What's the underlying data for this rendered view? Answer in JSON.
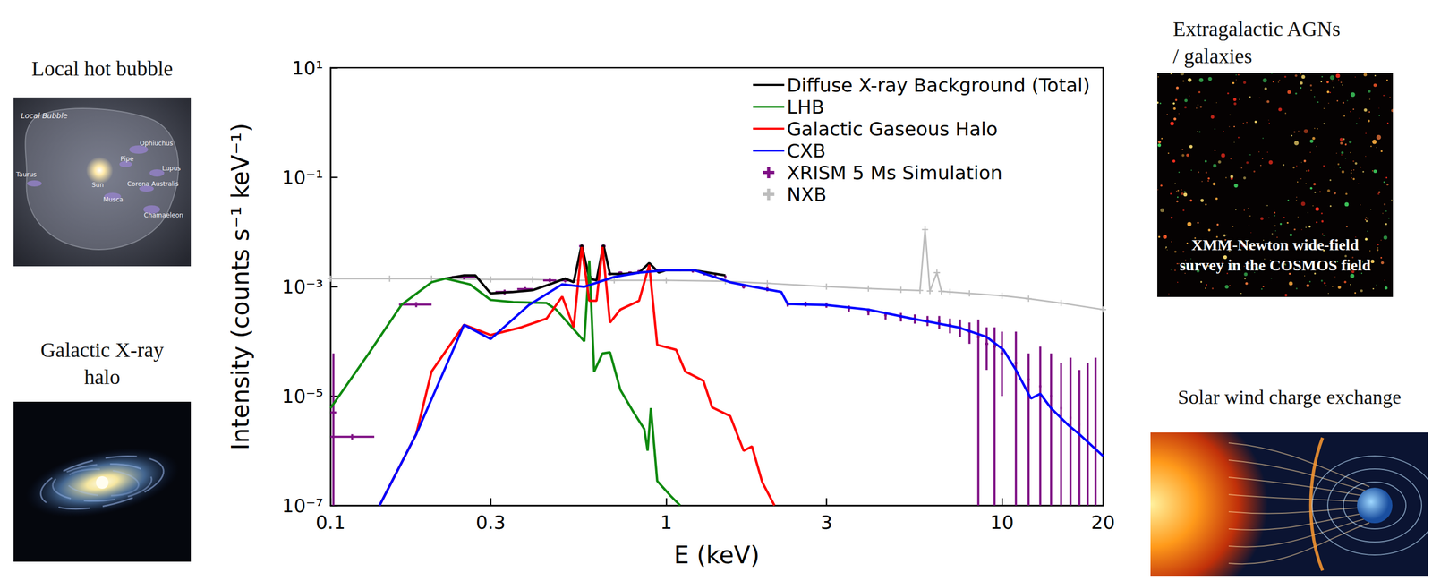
{
  "chart_data": {
    "type": "line",
    "x_label": "E (keV)",
    "y_label": "Intensity (counts s⁻¹ keV⁻¹)",
    "log": true,
    "grid": false,
    "legend": "upper right",
    "xlim": [
      0.1,
      20
    ],
    "xticks": [
      0.1,
      0.3,
      1,
      3,
      10,
      20
    ],
    "ylim": [
      1e-07,
      10
    ],
    "yticks": [
      {
        "value": 1e-07,
        "label": "10⁻⁷"
      },
      {
        "value": 1e-05,
        "label": "10⁻⁵"
      },
      {
        "value": 0.001,
        "label": "10⁻³"
      },
      {
        "value": 0.1,
        "label": "10⁻¹"
      },
      {
        "value": 10,
        "label": "10¹"
      }
    ],
    "series": [
      {
        "name": "Diffuse X-ray Background (Total)",
        "color": "#000000",
        "type": "line",
        "line_style": "solid",
        "x": [
          0.22,
          0.25,
          0.27,
          0.3,
          0.35,
          0.4,
          0.45,
          0.5,
          0.53,
          0.56,
          0.59,
          0.62,
          0.65,
          0.68,
          0.75,
          0.83,
          0.89,
          0.95,
          1.0,
          1.2,
          1.5
        ],
        "values": [
          0.0014,
          0.0016,
          0.0016,
          0.00075,
          0.0008,
          0.00086,
          0.0011,
          0.0014,
          0.0012,
          0.0058,
          0.0014,
          0.0013,
          0.0058,
          0.0017,
          0.0017,
          0.0018,
          0.0027,
          0.0018,
          0.002,
          0.002,
          0.0016
        ]
      },
      {
        "name": "LHB",
        "color": "#108a10",
        "type": "line",
        "line_style": "solid",
        "x": [
          0.1,
          0.13,
          0.163,
          0.2,
          0.22,
          0.26,
          0.3,
          0.35,
          0.44,
          0.47,
          0.57,
          0.59,
          0.61,
          0.646,
          0.68,
          0.73,
          0.8,
          0.86,
          0.88,
          0.9,
          0.94,
          1.03,
          1.1
        ],
        "values": [
          6e-06,
          6e-05,
          0.00047,
          0.0012,
          0.0014,
          0.0011,
          0.00057,
          0.00052,
          0.0005,
          0.00038,
          0.0001,
          0.003,
          2.8e-05,
          6e-05,
          6.3e-05,
          1.3e-05,
          5e-06,
          2.5e-06,
          1e-06,
          6e-06,
          2.8e-07,
          1.5e-07,
          1e-07
        ]
      },
      {
        "name": "Galactic Gaseous Halo",
        "color": "#ff0000",
        "type": "line",
        "line_style": "solid",
        "x": [
          0.14,
          0.18,
          0.2,
          0.25,
          0.3,
          0.37,
          0.44,
          0.49,
          0.53,
          0.56,
          0.59,
          0.62,
          0.646,
          0.68,
          0.73,
          0.83,
          0.89,
          0.94,
          1.07,
          1.14,
          1.29,
          1.37,
          1.55,
          1.7,
          1.8,
          1.93,
          2.1
        ],
        "values": [
          1e-07,
          2e-06,
          2.8e-05,
          0.0002,
          0.00013,
          0.00018,
          0.00026,
          0.00066,
          0.00018,
          0.0053,
          0.00055,
          0.00055,
          0.0053,
          0.00022,
          0.00038,
          0.00055,
          0.0025,
          8.6e-05,
          7e-05,
          2.8e-05,
          1.9e-05,
          6.2e-06,
          4.3e-06,
          1e-06,
          1.2e-06,
          2.7e-07,
          1e-07
        ]
      },
      {
        "name": "CXB",
        "color": "#0000ff",
        "type": "line",
        "line_style": "solid",
        "x": [
          0.14,
          0.18,
          0.25,
          0.3,
          0.39,
          0.49,
          0.57,
          0.7,
          0.83,
          1.0,
          1.21,
          1.55,
          1.8,
          2.2,
          2.3,
          3.0,
          4,
          5.4,
          7.4,
          9,
          10.1,
          11,
          12.2,
          13,
          14,
          15.7,
          17,
          20
        ],
        "values": [
          1e-07,
          2e-06,
          0.0002,
          0.00011,
          0.00046,
          0.0011,
          0.00099,
          0.0015,
          0.0018,
          0.002,
          0.002,
          0.0012,
          0.001,
          0.0008,
          0.00048,
          0.00046,
          0.00038,
          0.00026,
          0.00018,
          0.00012,
          7e-05,
          3e-05,
          9e-06,
          1.1e-05,
          6e-06,
          3e-06,
          2e-06,
          8e-07
        ]
      },
      {
        "name": "XRISM 5 Ms Simulation",
        "color": "#7f1085",
        "type": "scatter",
        "marker": "plus",
        "x": [
          0.102,
          0.116,
          0.18,
          0.25,
          0.33,
          0.38,
          0.45,
          0.5,
          0.56,
          0.59,
          0.65,
          0.68,
          0.73,
          0.78,
          0.83,
          0.89,
          0.95,
          1.0,
          1.1,
          1.2,
          1.3,
          1.4,
          1.5,
          1.7,
          2.0,
          2.3,
          2.6,
          3.0,
          3.5,
          4.0,
          4.5,
          5.0,
          5.5,
          6.0,
          6.5,
          7.0,
          7.5,
          8.0,
          8.5,
          9.0,
          9.5,
          10,
          11,
          12,
          13,
          14,
          15,
          16,
          17,
          18,
          19
        ],
        "values": [
          5e-06,
          1.8e-06,
          0.00047,
          0.0015,
          0.0008,
          0.0009,
          0.0013,
          0.0013,
          0.0055,
          0.0015,
          0.0055,
          0.0017,
          0.0018,
          0.0018,
          0.0019,
          0.0026,
          0.002,
          0.002,
          0.002,
          0.0019,
          0.0017,
          0.0016,
          0.0015,
          0.001,
          0.0009,
          0.00048,
          0.00048,
          0.00046,
          0.0004,
          0.00035,
          0.0003,
          0.00028,
          0.00026,
          0.00024,
          0.00023,
          0.0002,
          0.00018,
          0.00015,
          0.00012,
          9e-05,
          8e-05,
          6e-05,
          4e-05,
          2e-05,
          1.5e-05,
          1e-05,
          6e-06,
          4e-06,
          3e-06,
          2e-06,
          1.5e-06
        ],
        "y_low": [
          1e-07,
          1.6e-06,
          0.00042,
          0.00135,
          0.00072,
          0.00082,
          0.0012,
          0.0012,
          0.0052,
          0.0014,
          0.0052,
          0.0016,
          0.0017,
          0.0017,
          0.0018,
          0.00245,
          0.0019,
          0.0019,
          0.0019,
          0.0018,
          0.0016,
          0.0015,
          0.0014,
          0.00092,
          0.00082,
          0.00043,
          0.00043,
          0.00041,
          0.00035,
          0.0003,
          0.00025,
          0.00023,
          0.00021,
          0.00019,
          0.00017,
          0.00014,
          0.00012,
          9e-05,
          1e-07,
          3e-05,
          1e-07,
          1e-05,
          1e-07,
          1e-07,
          1e-07,
          1e-07,
          1e-07,
          1e-07,
          1e-07,
          1e-07,
          1e-07
        ],
        "y_high": [
          6e-05,
          2e-06,
          0.00052,
          0.00165,
          0.00088,
          0.00098,
          0.0014,
          0.0014,
          0.0058,
          0.0016,
          0.0058,
          0.0018,
          0.0019,
          0.0019,
          0.002,
          0.00275,
          0.0021,
          0.0021,
          0.0021,
          0.002,
          0.0018,
          0.0017,
          0.0016,
          0.00108,
          0.00098,
          0.00053,
          0.00053,
          0.00051,
          0.00045,
          0.0004,
          0.00035,
          0.00033,
          0.00031,
          0.00029,
          0.00029,
          0.00026,
          0.00025,
          0.00022,
          0.00025,
          0.00018,
          0.00018,
          0.00015,
          0.00015,
          6e-05,
          8e-05,
          6e-05,
          4e-05,
          5e-05,
          3e-05,
          4e-05,
          5e-05
        ],
        "x_low": [
          0.1,
          0.1,
          0.16,
          0.23,
          0.31,
          0.36,
          0.43,
          0.48,
          0.55,
          0.58,
          0.64,
          0.67,
          0.72,
          0.77,
          0.82,
          0.88,
          0.94,
          0.99,
          1.09,
          1.19,
          1.29,
          1.39,
          1.49,
          1.68,
          1.98,
          2.28,
          2.58,
          2.97,
          3.47,
          3.96,
          4.46,
          4.95,
          5.45,
          5.94,
          6.44,
          6.93,
          7.43,
          7.92,
          8.42,
          8.9,
          9.4,
          9.9,
          10.9,
          11.9,
          12.9,
          13.9,
          14.9,
          15.9,
          16.9,
          17.9,
          18.9
        ],
        "x_high": [
          0.104,
          0.135,
          0.2,
          0.27,
          0.35,
          0.4,
          0.47,
          0.52,
          0.57,
          0.6,
          0.66,
          0.69,
          0.74,
          0.79,
          0.84,
          0.9,
          0.96,
          1.01,
          1.11,
          1.21,
          1.31,
          1.41,
          1.51,
          1.72,
          2.02,
          2.32,
          2.62,
          3.03,
          3.53,
          4.04,
          4.54,
          5.05,
          5.55,
          6.06,
          6.56,
          7.07,
          7.57,
          8.08,
          8.58,
          9.1,
          9.6,
          10.1,
          11.1,
          12.1,
          13.1,
          14.1,
          15.1,
          16.1,
          17.1,
          18.1,
          19.1
        ]
      },
      {
        "name": "NXB",
        "color": "#bdbdbd",
        "type": "line",
        "marker": "plus",
        "line_style": "solid",
        "x": [
          0.1,
          0.15,
          0.2,
          0.3,
          0.4,
          0.5,
          0.7,
          1,
          1.5,
          2,
          3,
          4,
          5,
          5.7,
          5.9,
          6.1,
          6.4,
          6.6,
          7,
          8,
          10,
          12,
          15,
          20
        ],
        "values": [
          0.0014,
          0.0014,
          0.0014,
          0.00135,
          0.00135,
          0.0013,
          0.0013,
          0.0013,
          0.00125,
          0.00115,
          0.001,
          0.00092,
          0.00087,
          0.00085,
          0.011,
          0.00083,
          0.0018,
          0.00082,
          0.0008,
          0.00075,
          0.00068,
          0.0006,
          0.0005,
          0.00038
        ]
      }
    ]
  },
  "panels": [
    {
      "title": "Local hot bubble",
      "labels": [
        "Local Bubble",
        "Ophiuchus",
        "Pipe",
        "Lupus",
        "Taurus",
        "Sun",
        "Musca",
        "Corona Australis",
        "Chamaeleon"
      ]
    },
    {
      "title": "Galactic X-ray halo"
    },
    {
      "title": "Extragalactic AGNs / galaxies",
      "caption": "XMM-Newton wide-field survey in the COSMOS field"
    },
    {
      "title": "Solar wind charge exchange"
    }
  ]
}
